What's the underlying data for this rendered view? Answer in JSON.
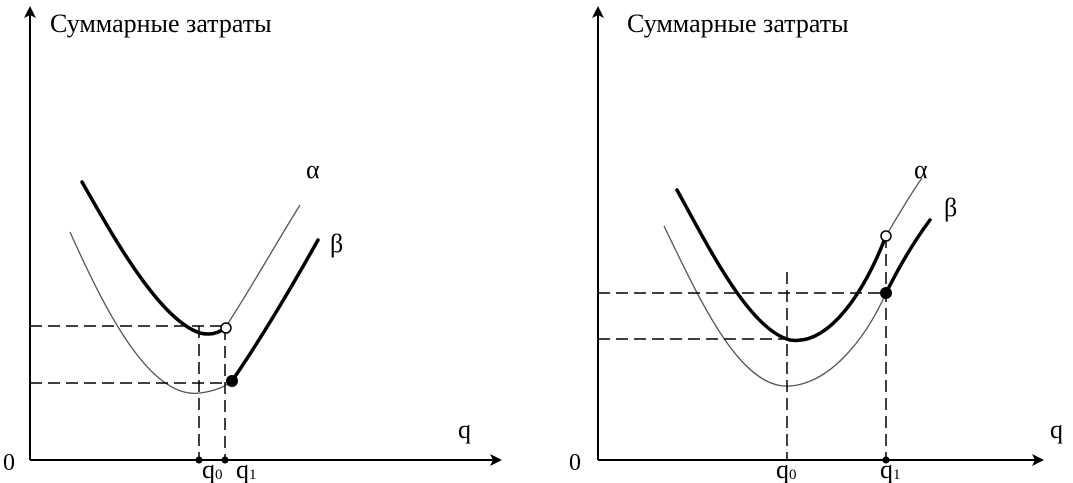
{
  "panels": [
    {
      "y_axis_label": "Суммарные затраты",
      "x_axis_label": "q",
      "origin_label": "0",
      "curve_alpha_label": "α",
      "curve_beta_label": "β",
      "q0": {
        "main": "q",
        "sub": "0"
      },
      "q1": {
        "main": "q",
        "sub": "1"
      }
    },
    {
      "y_axis_label": "Суммарные затраты",
      "x_axis_label": "q",
      "origin_label": "0",
      "curve_alpha_label": "α",
      "curve_beta_label": "β",
      "q0": {
        "main": "q",
        "sub": "0"
      },
      "q1": {
        "main": "q",
        "sub": "1"
      }
    }
  ],
  "colors": {
    "ink": "#000000",
    "thin_curve": "#555555",
    "background": "#ffffff"
  }
}
